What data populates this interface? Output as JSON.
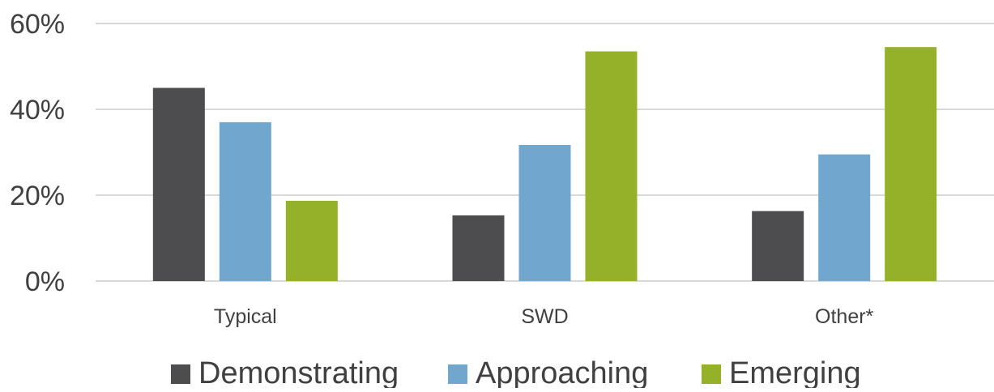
{
  "chart_data": {
    "type": "bar",
    "title": "",
    "xlabel": "",
    "ylabel": "",
    "categories": [
      "Typical",
      "SWD",
      "Other*"
    ],
    "series": [
      {
        "name": "Demonstrating",
        "color": "#4d4c4e",
        "values": [
          45,
          15.3,
          16.3
        ]
      },
      {
        "name": "Approaching",
        "color": "#71a6cf",
        "values": [
          37,
          31.7,
          29.5
        ]
      },
      {
        "name": "Emerging",
        "color": "#95b12a",
        "values": [
          18.7,
          53.5,
          54.5
        ]
      }
    ],
    "ylim": [
      0,
      60
    ],
    "yticks": [
      0,
      20,
      40,
      60
    ],
    "ytick_labels": [
      "0%",
      "20%",
      "40%",
      "60%"
    ],
    "grid": true,
    "grid_color": "#d9d9d9",
    "legend_position": "bottom"
  }
}
